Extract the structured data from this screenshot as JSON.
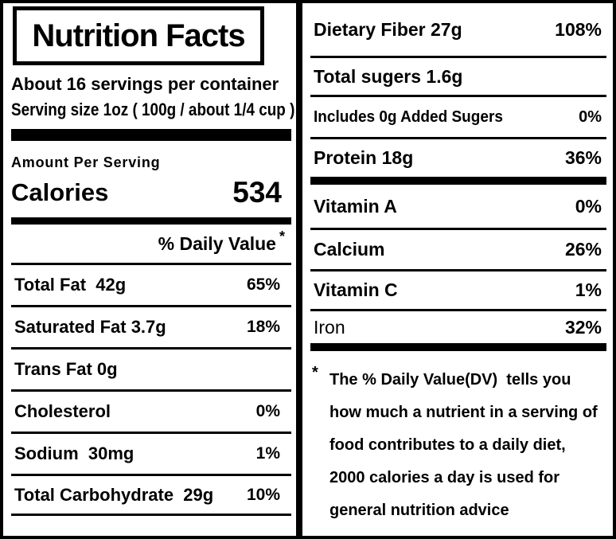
{
  "colors": {
    "ink": "#000000",
    "paper": "#ffffff"
  },
  "title": "Nutrition Facts",
  "left": {
    "servings_per_container": "About 16 servings per container",
    "serving_size": "Serving size 1oz ( 100g / about 1/4 cup )",
    "amount_per_serving": "Amount Per Serving",
    "calories_label": "Calories",
    "calories_value": "534",
    "daily_value_header": "% Daily Value",
    "daily_value_asterisk": "*",
    "rows": [
      {
        "name": "Total Fat  42g",
        "percent": "65%"
      },
      {
        "name": "Saturated Fat 3.7g",
        "percent": "18%"
      },
      {
        "name": "Trans Fat 0g",
        "percent": ""
      },
      {
        "name": "Cholesterol",
        "percent": "0%"
      },
      {
        "name": "Sodium  30mg",
        "percent": "1%"
      },
      {
        "name": "Total Carbohydrate  29g",
        "percent": "10%"
      }
    ]
  },
  "right": {
    "rows": [
      {
        "name": "Dietary Fiber 27g",
        "percent": "108%"
      },
      {
        "name": "Total sugers 1.6g",
        "percent": ""
      },
      {
        "name": "Includes 0g Added Sugers",
        "percent": "0%"
      },
      {
        "name": "Protein 18g",
        "percent": "36%"
      },
      {
        "name": "Vitamin A",
        "percent": "0%"
      },
      {
        "name": "Calcium",
        "percent": "26%"
      },
      {
        "name": "Vitamin C",
        "percent": "1%"
      },
      {
        "name": "Iron",
        "percent": "32%"
      }
    ],
    "footnote_marker": "*",
    "footnote_lines": [
      "The % Daily Value(DV)  tells you",
      "how much a nutrient in a serving of",
      "food contributes to a daily diet,",
      "2000 calories a day is used for",
      "general nutrition advice"
    ]
  }
}
